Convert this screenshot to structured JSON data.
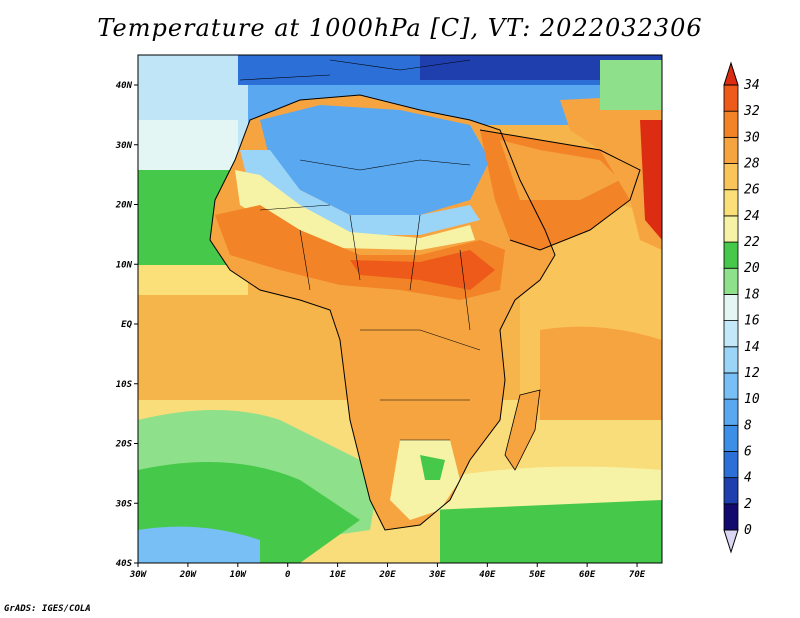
{
  "title": "Temperature at 1000hPa [C], VT: 2022032306",
  "credit": "GrADS: IGES/COLA",
  "lon_labels": [
    "30W",
    "20W",
    "10W",
    "0",
    "10E",
    "20E",
    "30E",
    "40E",
    "50E",
    "60E",
    "70E"
  ],
  "lat_labels": [
    "40N",
    "30N",
    "20N",
    "10N",
    "EQ",
    "10S",
    "20S",
    "30S",
    "40S"
  ],
  "colorbar": {
    "labels": [
      "0",
      "2",
      "4",
      "6",
      "8",
      "10",
      "12",
      "14",
      "16",
      "18",
      "20",
      "22",
      "24",
      "26",
      "28",
      "30",
      "32",
      "34"
    ],
    "colors": [
      "#130a6e",
      "#1f3fae",
      "#2c6fd6",
      "#3c8ee6",
      "#5aa8f0",
      "#78bff5",
      "#9ad5f7",
      "#c2e8fa",
      "#e4f6f4",
      "#8fe08a",
      "#46c94a",
      "#f7f3a6",
      "#fbe07a",
      "#f9c55a",
      "#f6a440",
      "#f28326",
      "#ee5a1a",
      "#dc2d12"
    ]
  }
}
